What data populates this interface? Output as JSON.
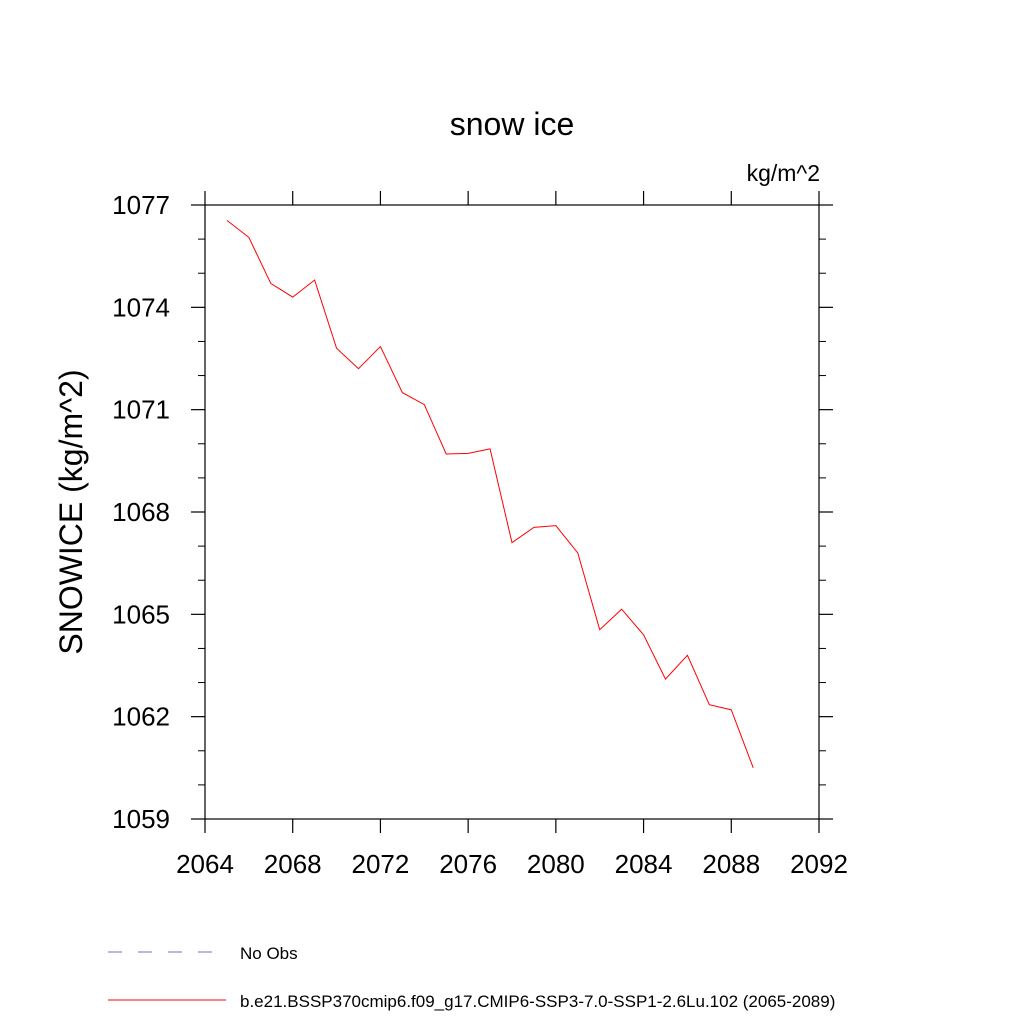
{
  "chart_data": {
    "type": "line",
    "title": "snow ice",
    "units_label": "kg/m^2",
    "ylabel": "SNOWICE  (kg/m^2)",
    "xlabel": "",
    "xlim": [
      2064,
      2092
    ],
    "ylim": [
      1059,
      1077
    ],
    "x_ticks": [
      "2064",
      "2068",
      "2072",
      "2076",
      "2080",
      "2084",
      "2088",
      "2092"
    ],
    "y_ticks": [
      "1059",
      "1062",
      "1065",
      "1068",
      "1071",
      "1074",
      "1077"
    ],
    "grid": false,
    "legend_position": "bottom-left",
    "series": [
      {
        "name": "No Obs",
        "color": "#7b6fc0",
        "dash": "dashed",
        "x": [],
        "values": []
      },
      {
        "name": "b.e21.BSSP370cmip6.f09_g17.CMIP6-SSP3-7.0-SSP1-2.6Lu.102 (2065-2089)",
        "color": "#ff0000",
        "dash": "solid",
        "x": [
          2065,
          2066,
          2067,
          2068,
          2069,
          2070,
          2071,
          2072,
          2073,
          2074,
          2075,
          2076,
          2077,
          2078,
          2079,
          2080,
          2081,
          2082,
          2083,
          2084,
          2085,
          2086,
          2087,
          2088,
          2089
        ],
        "values": [
          1076.55,
          1076.05,
          1074.7,
          1074.3,
          1074.8,
          1072.8,
          1072.2,
          1072.85,
          1071.5,
          1071.15,
          1069.7,
          1069.72,
          1069.85,
          1067.1,
          1067.55,
          1067.6,
          1066.8,
          1064.55,
          1065.15,
          1064.4,
          1063.1,
          1063.8,
          1062.35,
          1062.2,
          1060.5
        ]
      }
    ]
  }
}
